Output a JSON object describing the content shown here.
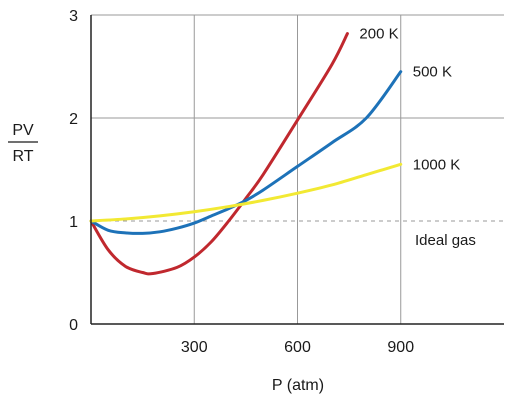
{
  "chart_data": {
    "type": "line",
    "xlabel": "P (atm)",
    "ylabel_top": "PV",
    "ylabel_bottom": "RT",
    "xlim": [
      0,
      1200
    ],
    "ylim": [
      0,
      3
    ],
    "xticks": [
      300,
      600,
      900
    ],
    "yticks": [
      0,
      1,
      2,
      3
    ],
    "grid": true,
    "reference_line": {
      "y": 1,
      "label": "Ideal gas",
      "style": "dashed",
      "color": "#999999"
    },
    "series": [
      {
        "name": "200 K",
        "color": "#c0282e",
        "x": [
          0,
          50,
          100,
          150,
          180,
          250,
          300,
          350,
          400,
          450,
          500,
          600,
          700,
          745
        ],
        "y": [
          1.0,
          0.72,
          0.56,
          0.5,
          0.49,
          0.55,
          0.65,
          0.8,
          1.0,
          1.22,
          1.45,
          1.98,
          2.52,
          2.82
        ]
      },
      {
        "name": "500 K",
        "color": "#1d72b8",
        "x": [
          0,
          50,
          100,
          150,
          200,
          250,
          300,
          350,
          400,
          450,
          500,
          600,
          700,
          800,
          900
        ],
        "y": [
          1.0,
          0.91,
          0.885,
          0.88,
          0.895,
          0.93,
          0.98,
          1.05,
          1.12,
          1.2,
          1.3,
          1.53,
          1.76,
          2.0,
          2.45
        ]
      },
      {
        "name": "1000 K",
        "color": "#f2e933",
        "x": [
          0,
          100,
          200,
          300,
          400,
          500,
          600,
          700,
          800,
          900
        ],
        "y": [
          1.0,
          1.02,
          1.05,
          1.09,
          1.14,
          1.2,
          1.27,
          1.35,
          1.45,
          1.55
        ]
      }
    ]
  }
}
